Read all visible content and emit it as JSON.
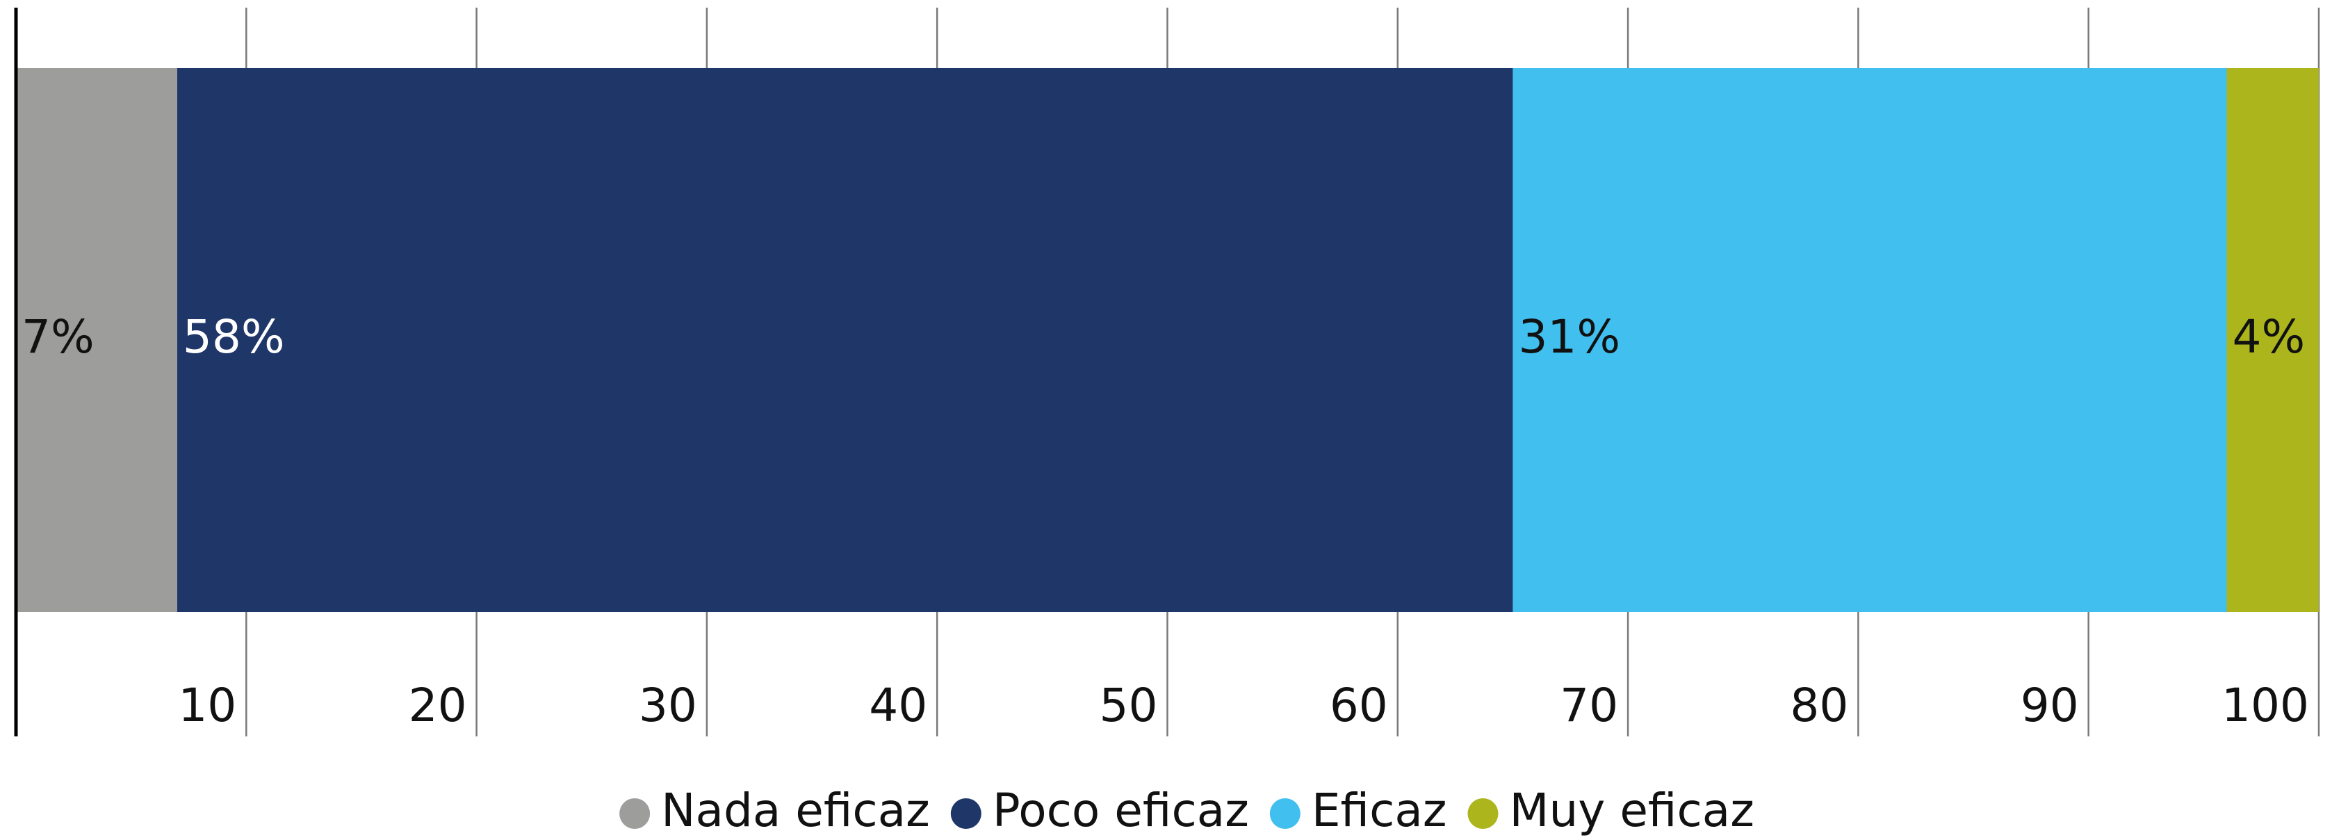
{
  "chart_data": {
    "type": "stacked_bar",
    "orientation": "horizontal",
    "series": [
      {
        "name": "Nada eficaz",
        "color": "#9d9d9c",
        "values": [
          7
        ],
        "value_labels": [
          "7%"
        ]
      },
      {
        "name": "Poco eficaz",
        "color": "#1f3668",
        "values": [
          58
        ],
        "value_labels": [
          "58%"
        ]
      },
      {
        "name": "Eficaz",
        "color": "#41bfef",
        "values": [
          31
        ],
        "value_labels": [
          "31%"
        ]
      },
      {
        "name": "Muy eficaz",
        "color": "#acb51b",
        "values": [
          4
        ],
        "value_labels": [
          "4%"
        ]
      }
    ],
    "xlim": [
      0,
      100
    ],
    "xticks": [
      10,
      20,
      30,
      40,
      50,
      60,
      70,
      80,
      90,
      100
    ],
    "grid": true,
    "legend": "bottom"
  }
}
